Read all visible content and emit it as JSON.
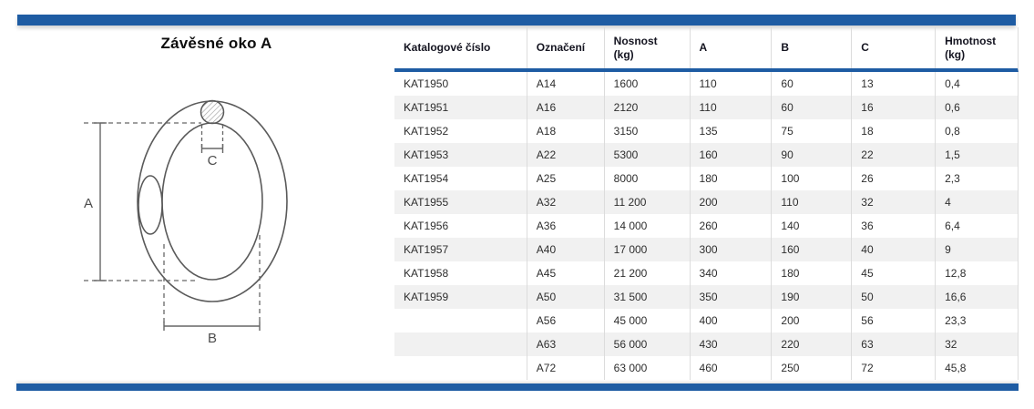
{
  "page": {
    "title": "Závěsné oko A"
  },
  "accent_color": "#1e5ca3",
  "stripe_color": "#f1f1f1",
  "diagram": {
    "description": "technical-drawing-of-suspension-eye",
    "labels": {
      "a": "A",
      "b": "B",
      "c": "C"
    }
  },
  "table": {
    "columns": [
      "Katalogové číslo",
      "Označení",
      "Nosnost\n(kg)",
      "A",
      "B",
      "C",
      "Hmotnost\n(kg)"
    ],
    "rows": [
      [
        "KAT1950",
        "A14",
        "1600",
        "110",
        "60",
        "13",
        "0,4"
      ],
      [
        "KAT1951",
        "A16",
        "2120",
        "110",
        "60",
        "16",
        "0,6"
      ],
      [
        "KAT1952",
        "A18",
        "3150",
        "135",
        "75",
        "18",
        "0,8"
      ],
      [
        "KAT1953",
        "A22",
        "5300",
        "160",
        "90",
        "22",
        "1,5"
      ],
      [
        "KAT1954",
        "A25",
        "8000",
        "180",
        "100",
        "26",
        "2,3"
      ],
      [
        "KAT1955",
        "A32",
        "11 200",
        "200",
        "110",
        "32",
        "4"
      ],
      [
        "KAT1956",
        "A36",
        "14 000",
        "260",
        "140",
        "36",
        "6,4"
      ],
      [
        "KAT1957",
        "A40",
        "17 000",
        "300",
        "160",
        "40",
        "9"
      ],
      [
        "KAT1958",
        "A45",
        "21 200",
        "340",
        "180",
        "45",
        "12,8"
      ],
      [
        "KAT1959",
        "A50",
        "31 500",
        "350",
        "190",
        "50",
        "16,6"
      ],
      [
        "",
        "A56",
        "45 000",
        "400",
        "200",
        "56",
        "23,3"
      ],
      [
        "",
        "A63",
        "56 000",
        "430",
        "220",
        "63",
        "32"
      ],
      [
        "",
        "A72",
        "63 000",
        "460",
        "250",
        "72",
        "45,8"
      ]
    ]
  }
}
